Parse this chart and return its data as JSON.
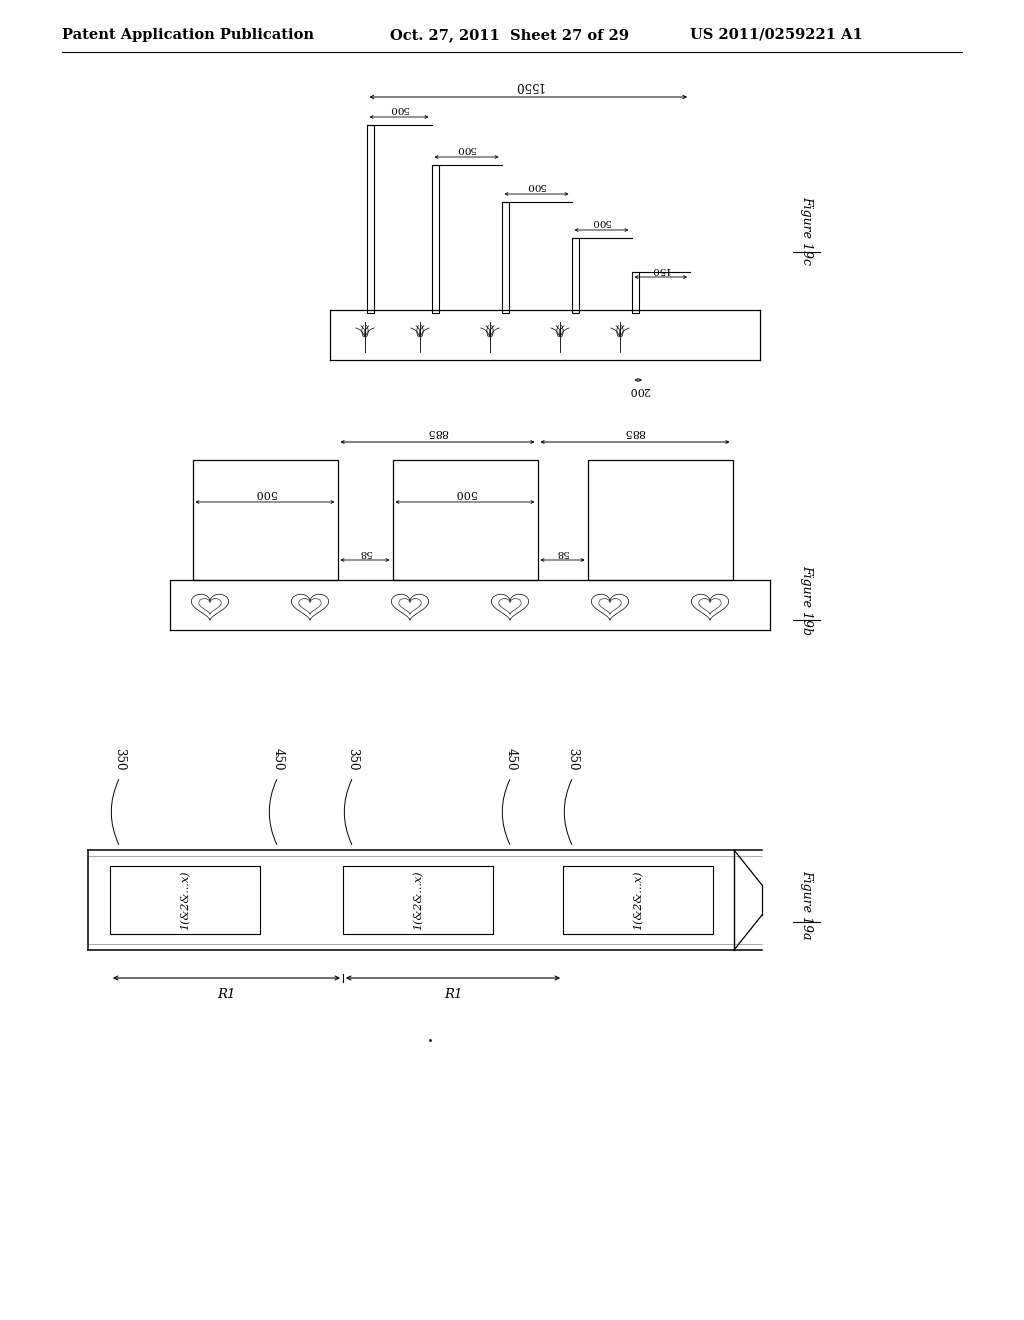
{
  "title_left": "Patent Application Publication",
  "title_center": "Oct. 27, 2011  Sheet 27 of 29",
  "title_right": "US 2011/0259221 A1",
  "bg_color": "#ffffff",
  "header_fontsize": 10.5,
  "fig19c_label": "Figure 19c",
  "fig19b_label": "Figure 19b",
  "fig19a_label": "Figure 19a",
  "note_19c": "The staircase shows 5 vertical pillars of decreasing height, left-to-right",
  "note_19b": "3 rectangular blocks on base with heart patterns",
  "note_19a": "Horizontal strip with 3 labeled panels"
}
